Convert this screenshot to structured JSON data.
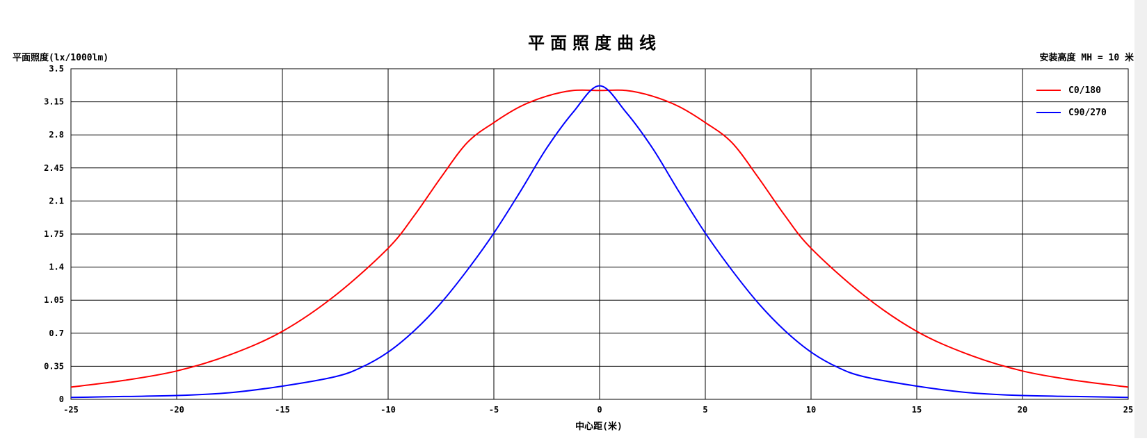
{
  "chart_data": {
    "type": "line",
    "title": "平面照度曲线",
    "ylabel": "平面照度(lx/1000lm)",
    "xlabel": "中心距(米)",
    "annotation": "安装高度 MH = 10 米",
    "xlim": [
      -25,
      25
    ],
    "ylim": [
      0,
      3.5
    ],
    "x_ticks": [
      "-25",
      "-20",
      "-15",
      "-10",
      "-5",
      "0",
      "5",
      "10",
      "15",
      "20",
      "25"
    ],
    "y_ticks": [
      "0",
      "0.35",
      "0.7",
      "1.05",
      "1.4",
      "1.75",
      "2.1",
      "2.45",
      "2.8",
      "3.15",
      "3.5"
    ],
    "grid": true,
    "legend_position": "top-right",
    "series": [
      {
        "name": "C0/180",
        "color": "#ff0000",
        "x": [
          -25,
          -22.5,
          -20,
          -17.5,
          -15,
          -12.5,
          -10,
          -8.75,
          -7.5,
          -6.25,
          -5,
          -3.75,
          -2.5,
          -1.25,
          0,
          1.25,
          2.5,
          3.75,
          5,
          6.25,
          7.5,
          8.75,
          10,
          12.5,
          15,
          17.5,
          20,
          22.5,
          25
        ],
        "y": [
          0.13,
          0.2,
          0.3,
          0.47,
          0.72,
          1.1,
          1.6,
          1.95,
          2.35,
          2.72,
          2.93,
          3.1,
          3.21,
          3.27,
          3.27,
          3.27,
          3.21,
          3.1,
          2.93,
          2.72,
          2.35,
          1.95,
          1.6,
          1.1,
          0.72,
          0.47,
          0.3,
          0.2,
          0.13
        ]
      },
      {
        "name": "C90/270",
        "color": "#0000ff",
        "x": [
          -25,
          -22.5,
          -20,
          -17.5,
          -15,
          -12.5,
          -11.25,
          -10,
          -8.75,
          -7.5,
          -6.25,
          -5,
          -3.75,
          -2.5,
          -1.25,
          0,
          1.25,
          2.5,
          3.75,
          5,
          6.25,
          7.5,
          8.75,
          10,
          11.25,
          12.5,
          15,
          17.5,
          20,
          22.5,
          25
        ],
        "y": [
          0.02,
          0.03,
          0.04,
          0.07,
          0.14,
          0.24,
          0.34,
          0.5,
          0.73,
          1.02,
          1.37,
          1.76,
          2.2,
          2.66,
          3.04,
          3.32,
          3.04,
          2.66,
          2.2,
          1.76,
          1.37,
          1.02,
          0.73,
          0.5,
          0.34,
          0.24,
          0.14,
          0.07,
          0.04,
          0.03,
          0.02
        ]
      }
    ]
  }
}
